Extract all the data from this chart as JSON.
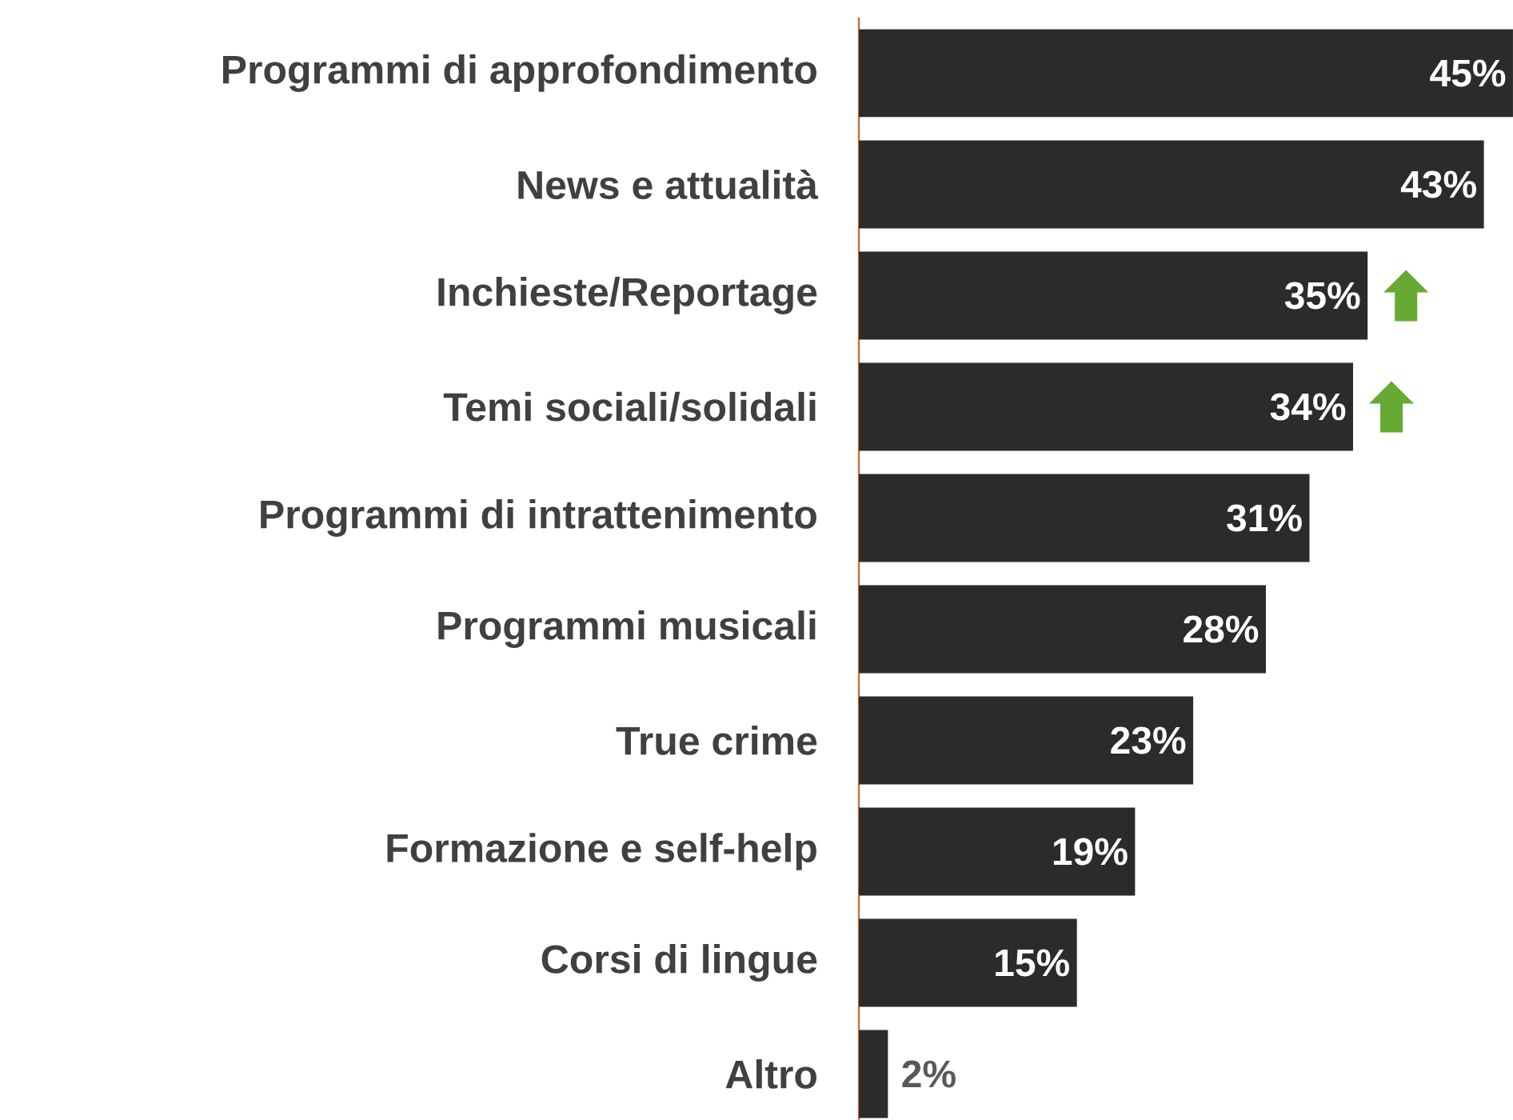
{
  "chart_data": {
    "type": "bar",
    "orientation": "horizontal",
    "tick_labels": "y",
    "categories": [
      "Programmi di approfondimento",
      "News e attualità",
      "Inchieste/Reportage",
      "Temi sociali/solidali",
      "Programmi di intrattenimento",
      "Programmi musicali",
      "True crime",
      "Formazione e self-help",
      "Corsi di lingue",
      "Altro"
    ],
    "values": [
      45,
      43,
      35,
      34,
      31,
      28,
      23,
      19,
      15,
      2
    ],
    "value_labels": [
      "45%",
      "43%",
      "35%",
      "34%",
      "31%",
      "28%",
      "23%",
      "19%",
      "15%",
      "2%"
    ],
    "color": "#2b2b2b"
  }
}
